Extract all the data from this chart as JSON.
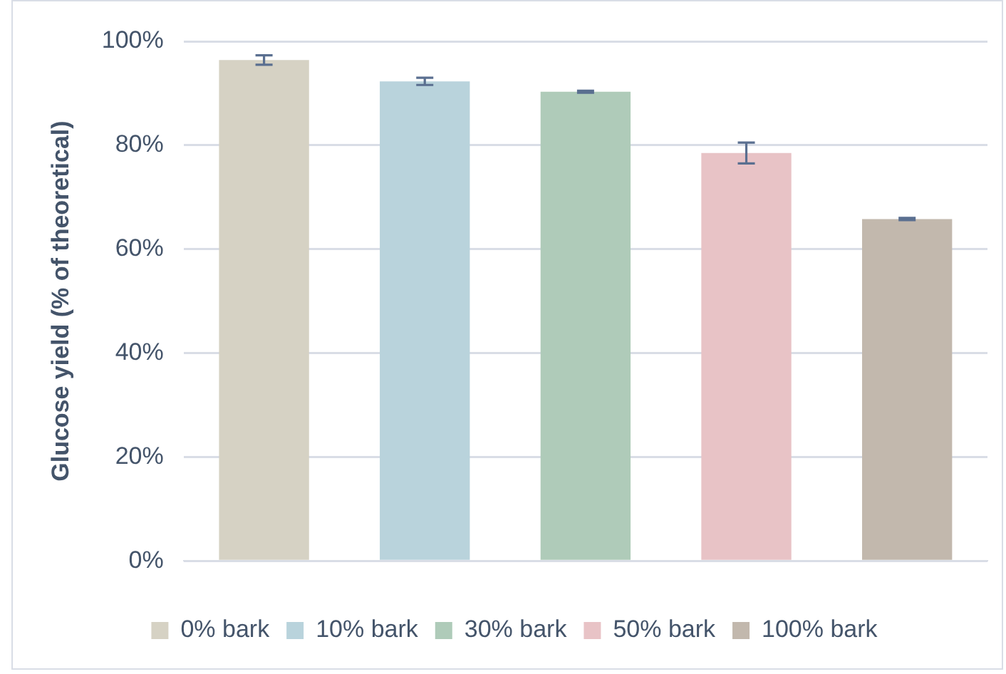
{
  "chart_data": {
    "type": "bar",
    "ylabel": "Glucose yield (% of theoretical)",
    "categories": [
      null
    ],
    "series": [
      {
        "name": "0% bark",
        "color": "#d6d2c4",
        "values": [
          96.4
        ],
        "errors": [
          0.9
        ]
      },
      {
        "name": "10% bark",
        "color": "#b9d3dc",
        "values": [
          92.3
        ],
        "errors": [
          0.7
        ]
      },
      {
        "name": "30% bark",
        "color": "#afcbb9",
        "values": [
          90.3
        ],
        "errors": [
          0.2
        ]
      },
      {
        "name": "50% bark",
        "color": "#e8c3c6",
        "values": [
          78.5
        ],
        "errors": [
          2.0
        ]
      },
      {
        "name": "100% bark",
        "color": "#c2b8ad",
        "values": [
          65.8
        ],
        "errors": [
          0.2
        ]
      }
    ],
    "ylim": [
      0,
      100
    ],
    "yticks": [
      {
        "value": 0,
        "label": "0%"
      },
      {
        "value": 20,
        "label": "20%"
      },
      {
        "value": 40,
        "label": "40%"
      },
      {
        "value": 60,
        "label": "60%"
      },
      {
        "value": 80,
        "label": "80%"
      },
      {
        "value": 100,
        "label": "100%"
      }
    ],
    "grid": "y",
    "legend": "bottom"
  }
}
